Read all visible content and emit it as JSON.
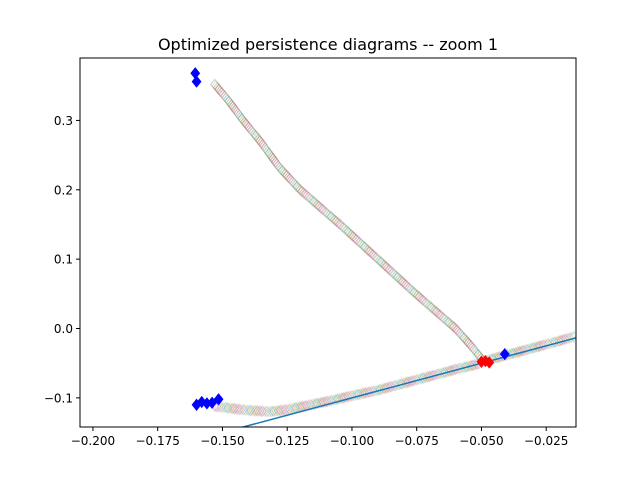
{
  "chart_data": {
    "type": "scatter",
    "title": "Optimized persistence diagrams -- zoom 1",
    "xlabel": "",
    "ylabel": "",
    "xlim": [
      -0.205,
      -0.0135
    ],
    "ylim": [
      -0.142,
      0.39
    ],
    "x_ticks": [
      {
        "value": -0.2,
        "label": "−0.200"
      },
      {
        "value": -0.175,
        "label": "−0.175"
      },
      {
        "value": -0.15,
        "label": "−0.150"
      },
      {
        "value": -0.125,
        "label": "−0.125"
      },
      {
        "value": -0.1,
        "label": "−0.100"
      },
      {
        "value": -0.075,
        "label": "−0.075"
      },
      {
        "value": -0.05,
        "label": "−0.050"
      },
      {
        "value": -0.025,
        "label": "−0.025"
      }
    ],
    "y_ticks": [
      {
        "value": -0.1,
        "label": "−0.1"
      },
      {
        "value": 0.0,
        "label": "0.0"
      },
      {
        "value": 0.1,
        "label": "0.1"
      },
      {
        "value": 0.2,
        "label": "0.2"
      },
      {
        "value": 0.3,
        "label": "0.3"
      }
    ],
    "grid": false,
    "legend": "none",
    "diagonal": {
      "color": "#1f77b4",
      "x": [
        -0.15,
        -0.0135
      ],
      "y": [
        -0.15,
        -0.0135
      ]
    },
    "trajectories": {
      "marker": "diamond-outline",
      "colors": [
        "#1f77b4",
        "#ff7f0e",
        "#2ca02c",
        "#d62728",
        "#9467bd",
        "#8c564b",
        "#e377c2",
        "#7f7f7f",
        "#bcbd22",
        "#17becf"
      ],
      "paths": [
        {
          "x": [
            -0.153,
            -0.148,
            -0.142,
            -0.135,
            -0.128,
            -0.12,
            -0.112,
            -0.104,
            -0.097,
            -0.09,
            -0.083,
            -0.076,
            -0.068,
            -0.06,
            -0.054,
            -0.049
          ],
          "y": [
            0.352,
            0.33,
            0.3,
            0.268,
            0.232,
            0.2,
            0.174,
            0.148,
            0.124,
            0.1,
            0.076,
            0.052,
            0.026,
            0.0,
            -0.025,
            -0.048
          ]
        },
        {
          "x": [
            -0.153,
            -0.147,
            -0.14,
            -0.132,
            -0.125,
            -0.116,
            -0.108,
            -0.1,
            -0.09,
            -0.08,
            -0.07,
            -0.06,
            -0.05
          ],
          "y": [
            -0.112,
            -0.115,
            -0.118,
            -0.12,
            -0.117,
            -0.11,
            -0.104,
            -0.097,
            -0.089,
            -0.079,
            -0.069,
            -0.059,
            -0.05
          ]
        },
        {
          "x": [
            -0.048,
            -0.04,
            -0.033,
            -0.026,
            -0.02,
            -0.0135
          ],
          "y": [
            -0.046,
            -0.038,
            -0.031,
            -0.024,
            -0.018,
            -0.011
          ]
        }
      ]
    },
    "series": [
      {
        "color": "#0000ff",
        "marker": "diamond",
        "x": [
          -0.1605,
          -0.16,
          -0.16,
          -0.158,
          -0.156,
          -0.154,
          -0.1515,
          -0.041
        ],
        "y": [
          0.368,
          0.356,
          -0.11,
          -0.106,
          -0.108,
          -0.107,
          -0.102,
          -0.037
        ]
      },
      {
        "color": "#ff0000",
        "marker": "diamond",
        "x": [
          -0.05,
          -0.0485,
          -0.047
        ],
        "y": [
          -0.048,
          -0.047,
          -0.049
        ]
      }
    ]
  }
}
